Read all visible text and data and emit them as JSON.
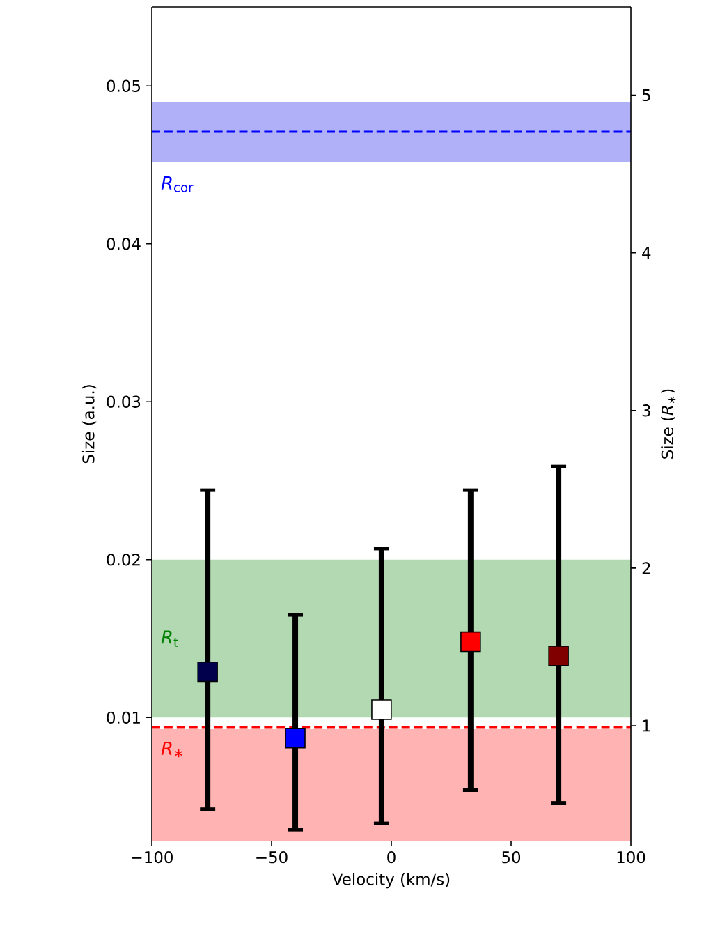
{
  "chart_data": {
    "type": "scatter",
    "xlabel": "Velocity (km/s)",
    "ylabel": "Size (a.u.)",
    "y2label": "Size (*R*$_{∗}$)",
    "x": [
      -76.7,
      -40.1,
      -4.1,
      33.1,
      69.8
    ],
    "values": [
      0.0129,
      0.0087,
      0.0105,
      0.0148,
      0.0139
    ],
    "colors": [
      "#00004d",
      "#0000ff",
      "#ffffff",
      "#ff0000",
      "#800000"
    ],
    "errors": [
      [
        0.0042,
        0.0244
      ],
      [
        0.0029,
        0.0165
      ],
      [
        0.0033,
        0.0207
      ],
      [
        0.0054,
        0.0244
      ],
      [
        0.0046,
        0.0259
      ]
    ],
    "marker": "square",
    "xlim": [
      -100,
      100
    ],
    "ylim": [
      0.0022,
      0.055
    ],
    "y2lim": [
      0.27,
      5.56
    ],
    "xticks": [
      {
        "value": -100,
        "label": "−100"
      },
      {
        "value": -50,
        "label": "−50"
      },
      0,
      50,
      100
    ],
    "yticks": [
      0.01,
      0.02,
      0.03,
      0.04,
      0.05
    ],
    "y2ticks": [
      1,
      2,
      3,
      4,
      5
    ],
    "bands": [
      {
        "axis": "y",
        "from": 0.0452,
        "to": 0.049,
        "color": "#b0b0f8"
      },
      {
        "axis": "y",
        "from": 0.01,
        "to": 0.02,
        "color": "#b2d9b2",
        "label": "*R*$_{t}$"
      },
      {
        "axis": "y",
        "from": 0.0022,
        "to": 0.0093,
        "color": "#ffb3b3"
      }
    ],
    "ref_lines": [
      {
        "axis": "y",
        "value": 0.0471,
        "color": "#0000ff",
        "line_style": "dashed",
        "label": "*R*$_{cor}$"
      },
      {
        "axis": "y",
        "value": 0.0094,
        "color": "#ff0000",
        "line_style": "dashed",
        "label": "*R*$_{∗}$"
      }
    ]
  }
}
